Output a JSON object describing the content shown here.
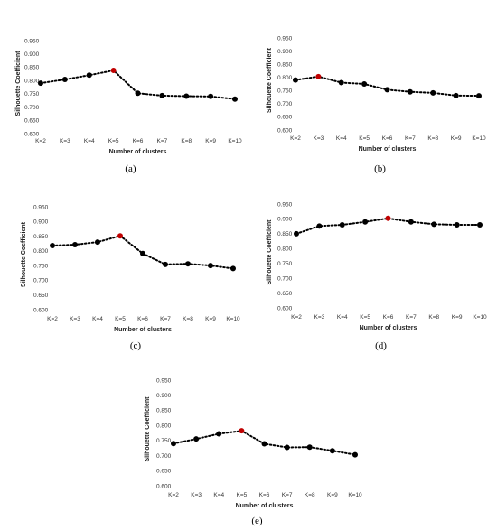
{
  "style": {
    "point_color": "#000000",
    "highlight_color": "#c00000",
    "line_color": "#000000"
  },
  "chart_data": [
    {
      "type": "line",
      "caption": "(a)",
      "xlabel": "Number of clusters",
      "ylabel": "Silhouette Coefficient",
      "categories": [
        "K=2",
        "K=3",
        "K=4",
        "K=5",
        "K=6",
        "K=7",
        "K=8",
        "K=9",
        "K=10"
      ],
      "values": [
        0.79,
        0.804,
        0.82,
        0.838,
        0.752,
        0.743,
        0.741,
        0.74,
        0.73
      ],
      "highlight_index": 3,
      "ylim": [
        0.6,
        0.95
      ],
      "yticks": [
        "0.600",
        "0.650",
        "0.700",
        "0.750",
        "0.800",
        "0.850",
        "0.900",
        "0.950"
      ],
      "grid": false
    },
    {
      "type": "line",
      "caption": "(b)",
      "xlabel": "Number of clusters",
      "ylabel": "Silhouette Coefficient",
      "categories": [
        "K=2",
        "K=3",
        "K=4",
        "K=5",
        "K=6",
        "K=7",
        "K=8",
        "K=9",
        "K=10"
      ],
      "values": [
        0.79,
        0.803,
        0.78,
        0.775,
        0.753,
        0.745,
        0.741,
        0.731,
        0.73
      ],
      "highlight_index": 1,
      "ylim": [
        0.6,
        0.95
      ],
      "yticks": [
        "0.600",
        "0.650",
        "0.700",
        "0.750",
        "0.800",
        "0.850",
        "0.900",
        "0.950"
      ],
      "grid": false
    },
    {
      "type": "line",
      "caption": "(c)",
      "xlabel": "Number of clusters",
      "ylabel": "Silhouette Coefficient",
      "categories": [
        "K=2",
        "K=3",
        "K=4",
        "K=5",
        "K=6",
        "K=7",
        "K=8",
        "K=9",
        "K=10"
      ],
      "values": [
        0.818,
        0.821,
        0.83,
        0.851,
        0.791,
        0.754,
        0.756,
        0.75,
        0.74
      ],
      "highlight_index": 3,
      "ylim": [
        0.6,
        0.95
      ],
      "yticks": [
        "0.600",
        "0.650",
        "0.700",
        "0.750",
        "0.800",
        "0.850",
        "0.900",
        "0.950"
      ],
      "grid": false
    },
    {
      "type": "line",
      "caption": "(d)",
      "xlabel": "Number of clusters",
      "ylabel": "Silhouette Coefficient",
      "categories": [
        "K=2",
        "K=3",
        "K=4",
        "K=5",
        "K=6",
        "K=7",
        "K=8",
        "K=9",
        "K=10"
      ],
      "values": [
        0.85,
        0.876,
        0.88,
        0.89,
        0.902,
        0.89,
        0.882,
        0.88,
        0.88
      ],
      "highlight_index": 4,
      "ylim": [
        0.6,
        0.95
      ],
      "yticks": [
        "0.600",
        "0.650",
        "0.700",
        "0.750",
        "0.800",
        "0.850",
        "0.900",
        "0.950"
      ],
      "grid": false
    },
    {
      "type": "line",
      "caption": "(e)",
      "xlabel": "Number of clusters",
      "ylabel": "Silhouette Coefficient",
      "categories": [
        "K=2",
        "K=3",
        "K=4",
        "K=5",
        "K=6",
        "K=7",
        "K=8",
        "K=9",
        "K=10"
      ],
      "values": [
        0.74,
        0.755,
        0.772,
        0.782,
        0.739,
        0.727,
        0.728,
        0.716,
        0.703
      ],
      "highlight_index": 3,
      "ylim": [
        0.6,
        0.95
      ],
      "yticks": [
        "0.600",
        "0.650",
        "0.700",
        "0.750",
        "0.800",
        "0.850",
        "0.900",
        "0.950"
      ],
      "grid": false
    }
  ]
}
